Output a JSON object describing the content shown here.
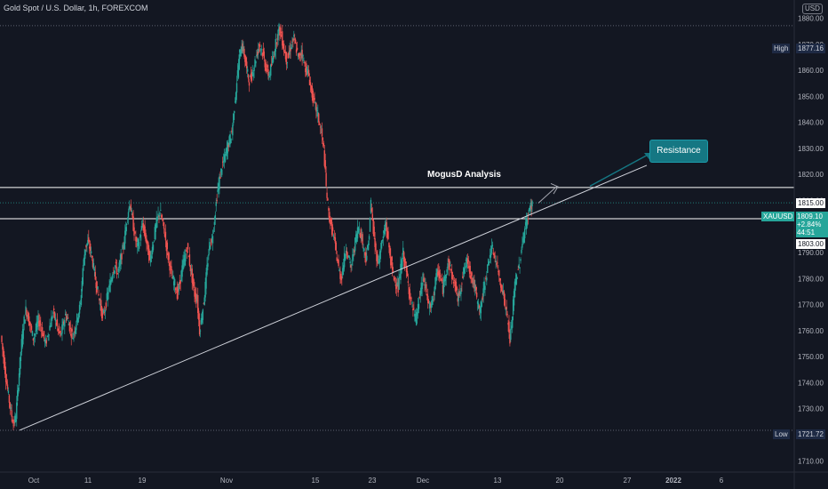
{
  "header": {
    "title": "Gold Spot / U.S. Dollar, 1h, FOREXCOM",
    "currency": "USD"
  },
  "annotations": {
    "analysis_label": "MogusD Analysis",
    "resistance_label": "Resistance"
  },
  "price_tags": {
    "high_label": "High",
    "high_value": "1877.16",
    "low_label": "Low",
    "low_value": "1721.72",
    "symbol": "XAUUSD",
    "last_price": "1809.10",
    "change": "+2.84%",
    "countdown": "44:51",
    "resistance_level": "1815.00",
    "support_level": "1803.00"
  },
  "colors": {
    "background": "#131722",
    "up": "#26a69a",
    "down": "#ef5350",
    "accent": "#157783"
  },
  "chart_data": {
    "type": "candlestick",
    "title": "Gold Spot / U.S. Dollar, 1h, FOREXCOM",
    "x_ticks": [
      "Oct",
      "11",
      "19",
      "Nov",
      "15",
      "23",
      "Dec",
      "13",
      "20",
      "27",
      "2022",
      "6"
    ],
    "y_ticks": [
      1710,
      1720,
      1730,
      1740,
      1750,
      1760,
      1770,
      1780,
      1790,
      1800,
      1810,
      1820,
      1830,
      1840,
      1850,
      1860,
      1870,
      1880
    ],
    "ylim": [
      1706,
      1887
    ],
    "horizontal_levels": [
      1815.0,
      1803.0
    ],
    "high": 1877.16,
    "low": 1721.72,
    "last": 1809.1,
    "trendline_start": 1721.72,
    "price_path": [
      1758,
      1750,
      1742,
      1735,
      1729,
      1724,
      1727,
      1740,
      1752,
      1762,
      1768,
      1765,
      1761,
      1757,
      1760,
      1764,
      1762,
      1758,
      1755,
      1759,
      1763,
      1767,
      1764,
      1760,
      1758,
      1762,
      1766,
      1764,
      1760,
      1758,
      1762,
      1766,
      1770,
      1784,
      1792,
      1794,
      1791,
      1786,
      1780,
      1775,
      1770,
      1765,
      1769,
      1774,
      1778,
      1783,
      1785,
      1782,
      1786,
      1791,
      1797,
      1805,
      1809,
      1802,
      1796,
      1792,
      1796,
      1801,
      1797,
      1792,
      1787,
      1792,
      1798,
      1803,
      1806,
      1802,
      1797,
      1790,
      1785,
      1780,
      1778,
      1774,
      1778,
      1784,
      1788,
      1792,
      1786,
      1780,
      1774,
      1772,
      1760,
      1766,
      1774,
      1784,
      1793,
      1795,
      1803,
      1812,
      1818,
      1823,
      1826,
      1830,
      1833,
      1836,
      1846,
      1856,
      1865,
      1870,
      1866,
      1860,
      1856,
      1858,
      1862,
      1866,
      1870,
      1868,
      1864,
      1860,
      1858,
      1862,
      1867,
      1872,
      1876,
      1873,
      1868,
      1864,
      1866,
      1870,
      1872,
      1868,
      1864,
      1868,
      1863,
      1860,
      1858,
      1852,
      1848,
      1845,
      1841,
      1836,
      1830,
      1815,
      1805,
      1800,
      1796,
      1790,
      1784,
      1780,
      1786,
      1792,
      1788,
      1784,
      1790,
      1796,
      1800,
      1797,
      1792,
      1788,
      1793,
      1809,
      1798,
      1790,
      1786,
      1792,
      1796,
      1801,
      1794,
      1787,
      1781,
      1779,
      1776,
      1784,
      1790,
      1784,
      1778,
      1772,
      1768,
      1764,
      1769,
      1775,
      1780,
      1777,
      1771,
      1768,
      1773,
      1779,
      1783,
      1780,
      1776,
      1782,
      1786,
      1784,
      1780,
      1777,
      1772,
      1776,
      1781,
      1785,
      1787,
      1783,
      1779,
      1776,
      1770,
      1768,
      1773,
      1779,
      1784,
      1790,
      1791,
      1788,
      1784,
      1779,
      1776,
      1770,
      1765,
      1756,
      1766,
      1778,
      1782,
      1786,
      1794,
      1799,
      1803,
      1807,
      1809
    ]
  }
}
